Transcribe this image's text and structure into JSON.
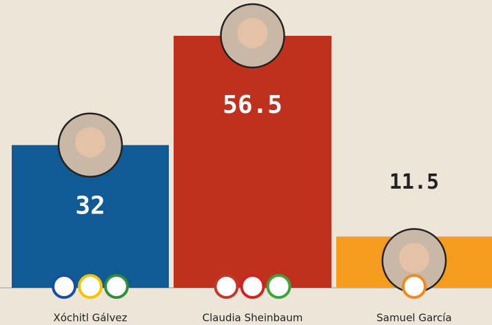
{
  "chart_data": {
    "type": "bar",
    "categories": [
      "Xóchitl Gálvez",
      "Claudia Sheinbaum",
      "Samuel García"
    ],
    "values": [
      32,
      56.5,
      11.5
    ],
    "colors": [
      "#105a95",
      "#bf301d",
      "#f59b1d"
    ]
  }
}
